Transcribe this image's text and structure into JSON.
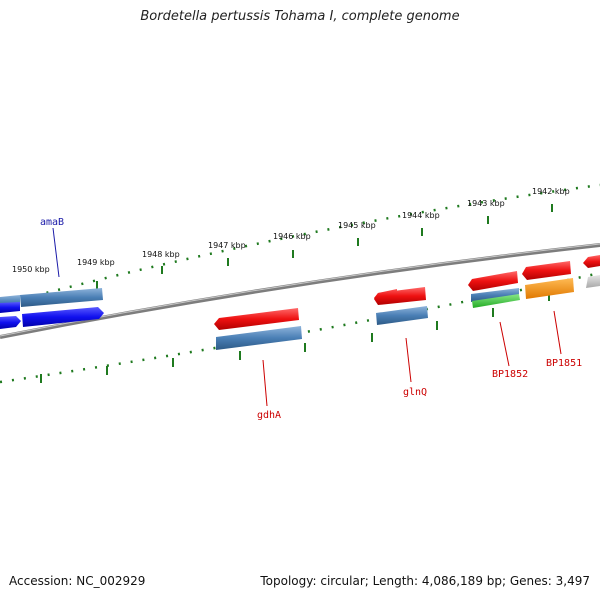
{
  "title": "Bordetella pertussis Tohama I, complete genome",
  "footer": {
    "accession": "Accession: NC_002929",
    "summary": "Topology: circular; Length: 4,086,189 bp; Genes: 3,497"
  },
  "colors": {
    "backbone": "#8a8a8a",
    "tick": "#1f7a1f",
    "red": "#ee1111",
    "blue": "#1010ee",
    "steel": "#4a7fb5",
    "green": "#33bb33",
    "orange": "#ff8c00",
    "grey": "#bbbbbb",
    "label_red": "#cc0000",
    "label_blue": "#1a1aa8"
  },
  "kbp_labels": [
    "1950 kbp",
    "1949 kbp",
    "1948 kbp",
    "1947 kbp",
    "1946 kbp",
    "1945 kbp",
    "1944 kbp",
    "1943 kbp",
    "1942 kbp"
  ],
  "gene_labels": {
    "amaB": "amaB",
    "gdhA": "gdhA",
    "glnQ": "glnQ",
    "BP1852": "BP1852",
    "BP1851": "BP1851"
  }
}
